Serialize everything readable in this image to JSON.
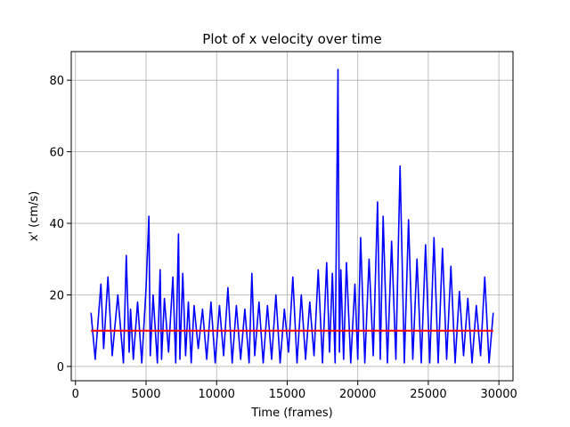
{
  "chart_data": {
    "type": "line",
    "title": "Plot of x velocity over time",
    "xlabel": "Time (frames)",
    "ylabel": "x' (cm/s)",
    "xlim": [
      -300,
      31000
    ],
    "ylim": [
      -4,
      88
    ],
    "xticks": [
      0,
      5000,
      10000,
      15000,
      20000,
      25000,
      30000
    ],
    "yticks": [
      0,
      20,
      40,
      60,
      80
    ],
    "grid": true,
    "colors": {
      "series": "#0000ff",
      "reference": "#ff0000",
      "grid": "#b0b0b0"
    },
    "series": [
      {
        "x": [
          1100,
          1400,
          1800,
          2000,
          2300,
          2600,
          3000,
          3400,
          3600,
          3800,
          3900,
          4100,
          4400,
          4700,
          5000,
          5200,
          5300,
          5500,
          5800,
          6000,
          6100,
          6300,
          6600,
          6900,
          7100,
          7300,
          7400,
          7600,
          7800,
          8000,
          8200,
          8400,
          8700,
          9000,
          9300,
          9600,
          9900,
          10200,
          10500,
          10800,
          11100,
          11400,
          11700,
          12000,
          12300,
          12500,
          12700,
          13000,
          13300,
          13600,
          13900,
          14200,
          14500,
          14800,
          15100,
          15400,
          15700,
          16000,
          16300,
          16600,
          16900,
          17200,
          17500,
          17800,
          18000,
          18200,
          18400,
          18600,
          18700,
          18800,
          19000,
          19200,
          19500,
          19800,
          20000,
          20200,
          20500,
          20800,
          21100,
          21400,
          21600,
          21800,
          22100,
          22400,
          22700,
          23000,
          23300,
          23600,
          23900,
          24200,
          24500,
          24800,
          25100,
          25400,
          25700,
          26000,
          26300,
          26600,
          26900,
          27200,
          27500,
          27800,
          28100,
          28400,
          28700,
          29000,
          29300,
          29600
        ],
        "values": [
          15,
          2,
          23,
          5,
          25,
          3,
          20,
          1,
          31,
          4,
          16,
          2,
          18,
          1,
          22,
          42,
          3,
          20,
          1,
          27,
          2,
          19,
          4,
          25,
          1,
          37,
          2,
          26,
          3,
          18,
          1,
          17,
          5,
          16,
          2,
          18,
          1,
          17,
          3,
          22,
          1,
          17,
          2,
          16,
          1,
          26,
          3,
          18,
          1,
          17,
          2,
          20,
          1,
          16,
          4,
          25,
          1,
          20,
          2,
          18,
          3,
          27,
          1,
          29,
          4,
          26,
          1,
          83,
          4,
          27,
          2,
          29,
          1,
          23,
          2,
          36,
          1,
          30,
          3,
          46,
          2,
          42,
          1,
          35,
          2,
          56,
          1,
          41,
          2,
          30,
          1,
          34,
          1,
          36,
          1,
          33,
          2,
          28,
          1,
          21,
          3,
          19,
          1,
          17,
          3,
          25,
          1,
          15
        ]
      },
      {
        "x": [
          1100,
          29600
        ],
        "values": [
          10,
          10
        ]
      }
    ]
  }
}
